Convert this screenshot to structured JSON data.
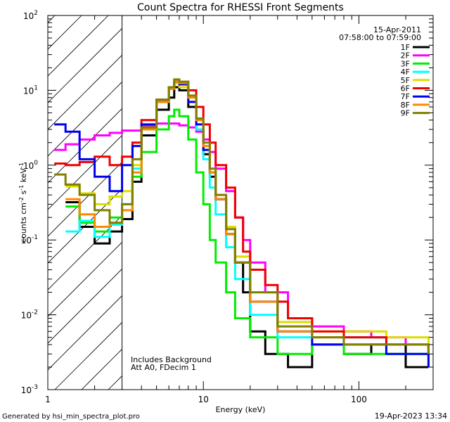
{
  "chart_data": {
    "type": "line",
    "title": "Count Spectra for RHESSI Front Segments",
    "xlabel": "Energy (keV)",
    "ylabel": "counts cm⁻² s⁻¹ keV⁻¹",
    "x_scale": "log",
    "y_scale": "log",
    "xlim": [
      1,
      300
    ],
    "ylim": [
      0.001,
      100
    ],
    "x_ticks": [
      {
        "value": 1,
        "label": "1"
      },
      {
        "value": 10,
        "label": "10"
      },
      {
        "value": 100,
        "label": "100"
      }
    ],
    "y_ticks": [
      {
        "value": 0.001,
        "base": "10",
        "exp": "-3"
      },
      {
        "value": 0.01,
        "base": "10",
        "exp": "-2"
      },
      {
        "value": 0.1,
        "base": "10",
        "exp": "-1"
      },
      {
        "value": 1,
        "base": "10",
        "exp": "0"
      },
      {
        "value": 10,
        "base": "10",
        "exp": "1"
      },
      {
        "value": 100,
        "base": "10",
        "exp": "2"
      }
    ],
    "shaded_region": {
      "x_start": 1,
      "x_end": 3,
      "description": "hatched excluded energy range"
    },
    "date": "15-Apr-2011",
    "time_range": "07:58:00 to 07:59:00",
    "annotations": [
      "Includes Background",
      "Att A0, FDecim 1"
    ],
    "series": [
      {
        "name": "1F",
        "color": "#000000",
        "points": [
          [
            1.3,
            0.32
          ],
          [
            1.6,
            0.15
          ],
          [
            2.0,
            0.09
          ],
          [
            2.5,
            0.13
          ],
          [
            3.0,
            0.19
          ],
          [
            3.5,
            0.6
          ],
          [
            4.0,
            2.5
          ],
          [
            5.0,
            5.5
          ],
          [
            6.0,
            8.0
          ],
          [
            6.5,
            11.0
          ],
          [
            7.0,
            10.0
          ],
          [
            8.0,
            6.0
          ],
          [
            9.0,
            3.0
          ],
          [
            10.0,
            1.4
          ],
          [
            11.0,
            0.7
          ],
          [
            12.0,
            0.35
          ],
          [
            14.0,
            0.12
          ],
          [
            16.0,
            0.05
          ],
          [
            18.0,
            0.02
          ],
          [
            20.0,
            0.006
          ],
          [
            25.0,
            0.003
          ],
          [
            35.0,
            0.002
          ],
          [
            50.0,
            0.004
          ],
          [
            80.0,
            0.003
          ],
          [
            120.0,
            0.004
          ],
          [
            200.0,
            0.002
          ],
          [
            280.0,
            0.002
          ]
        ]
      },
      {
        "name": "2F",
        "color": "#ff00ff",
        "points": [
          [
            1.1,
            1.6
          ],
          [
            1.3,
            1.9
          ],
          [
            1.6,
            2.2
          ],
          [
            2.0,
            2.5
          ],
          [
            2.5,
            2.7
          ],
          [
            3.0,
            2.9
          ],
          [
            4.0,
            3.3
          ],
          [
            5.0,
            3.6
          ],
          [
            6.0,
            3.6
          ],
          [
            7.0,
            3.4
          ],
          [
            8.0,
            3.2
          ],
          [
            9.0,
            2.8
          ],
          [
            10.0,
            2.2
          ],
          [
            11.0,
            1.5
          ],
          [
            12.0,
            0.9
          ],
          [
            14.0,
            0.45
          ],
          [
            16.0,
            0.2
          ],
          [
            18.0,
            0.1
          ],
          [
            20.0,
            0.05
          ],
          [
            25.0,
            0.02
          ],
          [
            35.0,
            0.009
          ],
          [
            50.0,
            0.007
          ],
          [
            80.0,
            0.006
          ],
          [
            120.0,
            0.005
          ],
          [
            200.0,
            0.004
          ],
          [
            280.0,
            0.003
          ]
        ]
      },
      {
        "name": "3F",
        "color": "#00ee00",
        "points": [
          [
            1.3,
            0.28
          ],
          [
            1.6,
            0.17
          ],
          [
            2.0,
            0.13
          ],
          [
            2.5,
            0.2
          ],
          [
            3.0,
            0.3
          ],
          [
            3.5,
            0.7
          ],
          [
            4.0,
            1.5
          ],
          [
            5.0,
            3.0
          ],
          [
            6.0,
            4.5
          ],
          [
            6.5,
            5.5
          ],
          [
            7.0,
            4.5
          ],
          [
            8.0,
            2.2
          ],
          [
            9.0,
            0.8
          ],
          [
            10.0,
            0.3
          ],
          [
            11.0,
            0.1
          ],
          [
            12.0,
            0.05
          ],
          [
            14.0,
            0.02
          ],
          [
            16.0,
            0.009
          ],
          [
            20.0,
            0.005
          ],
          [
            30.0,
            0.003
          ],
          [
            50.0,
            0.004
          ],
          [
            80.0,
            0.003
          ],
          [
            150.0,
            0.003
          ],
          [
            280.0,
            0.002
          ]
        ]
      },
      {
        "name": "4F",
        "color": "#00ffff",
        "points": [
          [
            1.3,
            0.13
          ],
          [
            1.6,
            0.18
          ],
          [
            2.0,
            0.11
          ],
          [
            2.5,
            0.16
          ],
          [
            3.0,
            0.3
          ],
          [
            3.5,
            0.9
          ],
          [
            4.0,
            3.0
          ],
          [
            5.0,
            7.5
          ],
          [
            6.0,
            11.0
          ],
          [
            6.5,
            13.0
          ],
          [
            7.0,
            12.0
          ],
          [
            8.0,
            7.0
          ],
          [
            9.0,
            3.0
          ],
          [
            10.0,
            1.2
          ],
          [
            11.0,
            0.5
          ],
          [
            12.0,
            0.22
          ],
          [
            14.0,
            0.08
          ],
          [
            16.0,
            0.03
          ],
          [
            20.0,
            0.01
          ],
          [
            30.0,
            0.005
          ],
          [
            50.0,
            0.004
          ],
          [
            80.0,
            0.005
          ],
          [
            150.0,
            0.004
          ],
          [
            280.0,
            0.003
          ]
        ]
      },
      {
        "name": "5F",
        "color": "#dddd00",
        "points": [
          [
            1.3,
            0.52
          ],
          [
            1.6,
            0.42
          ],
          [
            2.0,
            0.3
          ],
          [
            2.5,
            0.38
          ],
          [
            3.0,
            0.45
          ],
          [
            3.5,
            1.0
          ],
          [
            4.0,
            3.0
          ],
          [
            5.0,
            7.0
          ],
          [
            6.0,
            10.5
          ],
          [
            6.5,
            12.5
          ],
          [
            7.0,
            11.0
          ],
          [
            8.0,
            7.0
          ],
          [
            9.0,
            3.5
          ],
          [
            10.0,
            1.6
          ],
          [
            11.0,
            0.8
          ],
          [
            12.0,
            0.4
          ],
          [
            14.0,
            0.15
          ],
          [
            16.0,
            0.06
          ],
          [
            20.0,
            0.02
          ],
          [
            30.0,
            0.008
          ],
          [
            50.0,
            0.006
          ],
          [
            80.0,
            0.006
          ],
          [
            150.0,
            0.005
          ],
          [
            280.0,
            0.004
          ]
        ]
      },
      {
        "name": "6F",
        "color": "#ee0000",
        "points": [
          [
            1.1,
            1.05
          ],
          [
            1.3,
            1.0
          ],
          [
            1.6,
            1.1
          ],
          [
            2.0,
            1.3
          ],
          [
            2.5,
            1.0
          ],
          [
            3.0,
            1.3
          ],
          [
            3.5,
            2.0
          ],
          [
            4.0,
            4.0
          ],
          [
            5.0,
            7.5
          ],
          [
            6.0,
            10.5
          ],
          [
            6.5,
            13.0
          ],
          [
            7.0,
            13.0
          ],
          [
            8.0,
            10.0
          ],
          [
            9.0,
            6.0
          ],
          [
            10.0,
            3.5
          ],
          [
            11.0,
            2.0
          ],
          [
            12.0,
            1.0
          ],
          [
            14.0,
            0.5
          ],
          [
            16.0,
            0.2
          ],
          [
            18.0,
            0.07
          ],
          [
            20.0,
            0.04
          ],
          [
            25.0,
            0.025
          ],
          [
            30.0,
            0.015
          ],
          [
            35.0,
            0.009
          ],
          [
            50.0,
            0.006
          ],
          [
            80.0,
            0.005
          ],
          [
            150.0,
            0.004
          ],
          [
            280.0,
            0.003
          ]
        ]
      },
      {
        "name": "7F",
        "color": "#0000ee",
        "points": [
          [
            1.1,
            3.5
          ],
          [
            1.3,
            2.8
          ],
          [
            1.6,
            1.2
          ],
          [
            2.0,
            0.7
          ],
          [
            2.5,
            0.45
          ],
          [
            3.0,
            1.0
          ],
          [
            3.5,
            1.8
          ],
          [
            4.0,
            3.5
          ],
          [
            5.0,
            7.0
          ],
          [
            6.0,
            11.0
          ],
          [
            6.5,
            13.0
          ],
          [
            7.0,
            12.0
          ],
          [
            8.0,
            7.0
          ],
          [
            9.0,
            3.5
          ],
          [
            10.0,
            1.6
          ],
          [
            11.0,
            0.8
          ],
          [
            12.0,
            0.35
          ],
          [
            14.0,
            0.12
          ],
          [
            16.0,
            0.05
          ],
          [
            20.0,
            0.015
          ],
          [
            30.0,
            0.006
          ],
          [
            50.0,
            0.004
          ],
          [
            80.0,
            0.004
          ],
          [
            150.0,
            0.003
          ],
          [
            280.0,
            0.002
          ]
        ]
      },
      {
        "name": "8F",
        "color": "#ff8800",
        "points": [
          [
            1.3,
            0.35
          ],
          [
            1.6,
            0.22
          ],
          [
            2.0,
            0.15
          ],
          [
            2.5,
            0.17
          ],
          [
            3.0,
            0.25
          ],
          [
            3.5,
            0.8
          ],
          [
            4.0,
            3.0
          ],
          [
            5.0,
            7.0
          ],
          [
            6.0,
            10.5
          ],
          [
            6.5,
            13.0
          ],
          [
            7.0,
            12.5
          ],
          [
            8.0,
            8.0
          ],
          [
            9.0,
            4.0
          ],
          [
            10.0,
            1.8
          ],
          [
            11.0,
            0.8
          ],
          [
            12.0,
            0.35
          ],
          [
            14.0,
            0.12
          ],
          [
            16.0,
            0.05
          ],
          [
            20.0,
            0.015
          ],
          [
            30.0,
            0.006
          ],
          [
            50.0,
            0.005
          ],
          [
            80.0,
            0.004
          ],
          [
            150.0,
            0.004
          ],
          [
            280.0,
            0.003
          ]
        ]
      },
      {
        "name": "9F",
        "color": "#808000",
        "points": [
          [
            1.1,
            0.75
          ],
          [
            1.3,
            0.55
          ],
          [
            1.6,
            0.4
          ],
          [
            2.0,
            0.25
          ],
          [
            2.5,
            0.17
          ],
          [
            3.0,
            0.3
          ],
          [
            3.5,
            1.2
          ],
          [
            4.0,
            3.2
          ],
          [
            5.0,
            7.5
          ],
          [
            6.0,
            11.0
          ],
          [
            6.5,
            14.0
          ],
          [
            7.0,
            13.0
          ],
          [
            8.0,
            8.5
          ],
          [
            9.0,
            4.2
          ],
          [
            10.0,
            2.0
          ],
          [
            11.0,
            0.9
          ],
          [
            12.0,
            0.4
          ],
          [
            14.0,
            0.14
          ],
          [
            16.0,
            0.05
          ],
          [
            20.0,
            0.02
          ],
          [
            30.0,
            0.007
          ],
          [
            50.0,
            0.005
          ],
          [
            80.0,
            0.004
          ],
          [
            150.0,
            0.004
          ],
          [
            280.0,
            0.003
          ]
        ]
      }
    ]
  },
  "footer": {
    "generated_by": "Generated by hsi_min_spectra_plot.pro",
    "timestamp": "19-Apr-2023 13:34"
  }
}
